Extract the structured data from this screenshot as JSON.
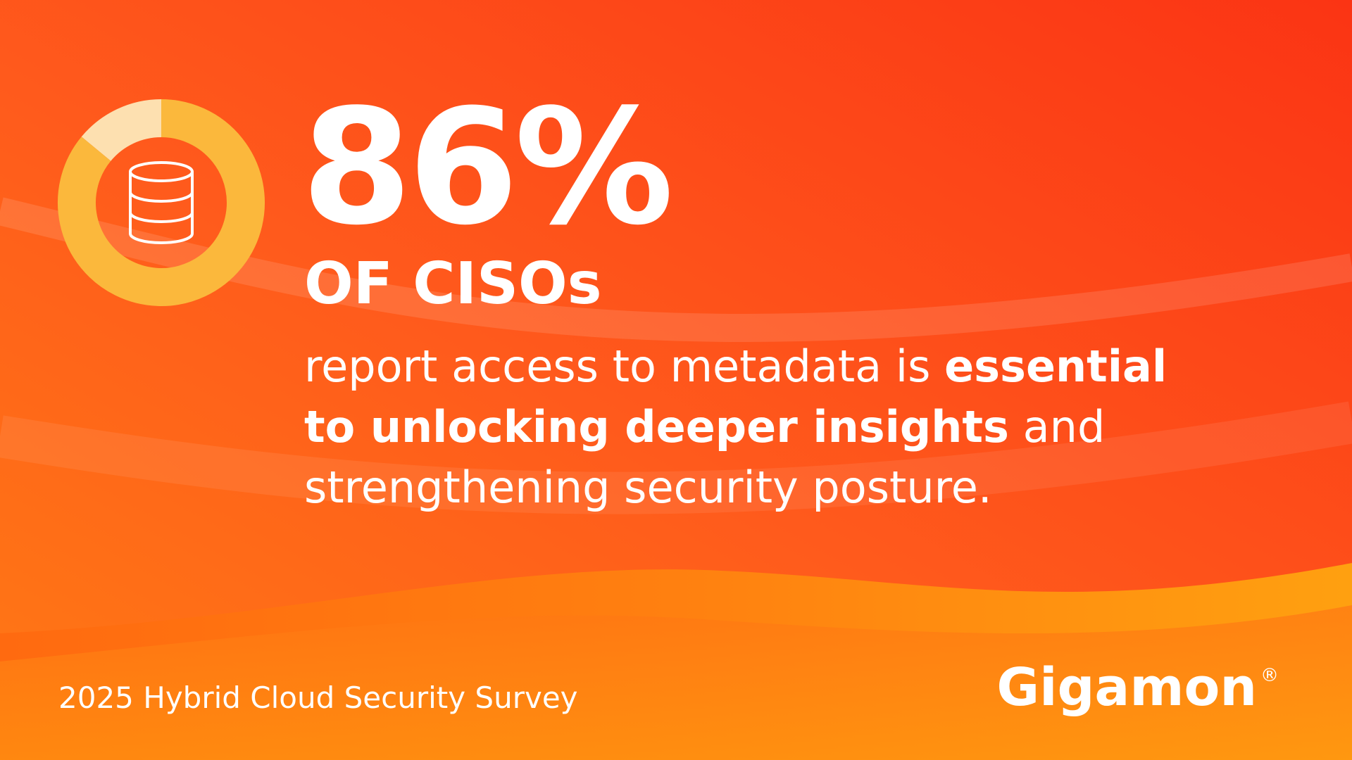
{
  "stat": {
    "value": 86,
    "label": "86%"
  },
  "subject": "OF CISOs",
  "body": [
    [
      {
        "text": "report access to metadata is ",
        "bold": false
      },
      {
        "text": "essential",
        "bold": true
      }
    ],
    [
      {
        "text": "to unlocking deeper insights",
        "bold": true
      },
      {
        "text": " and",
        "bold": false
      }
    ],
    [
      {
        "text": "strengthening security posture.",
        "bold": false
      }
    ]
  ],
  "footer": "2025 Hybrid Cloud Security Survey",
  "brand": "Gigamon",
  "trademark": "®",
  "colors": {
    "donut": "#fbb83c",
    "donut_rest": "#fde0b0"
  }
}
